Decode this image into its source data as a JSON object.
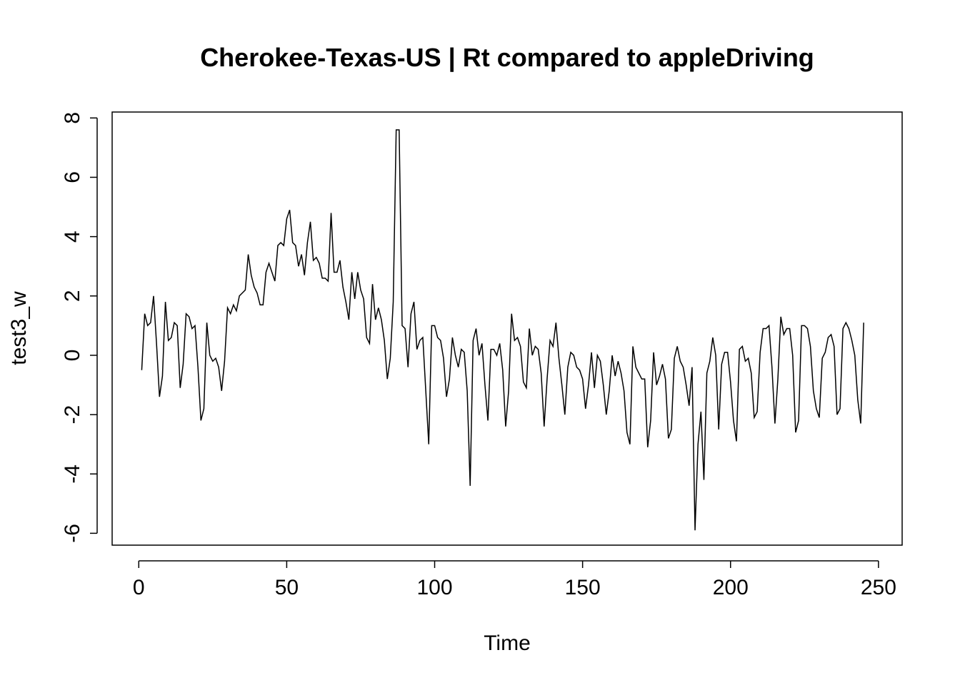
{
  "chart_data": {
    "type": "line",
    "title": "Cherokee-Texas-US | Rt compared to appleDriving",
    "xlabel": "Time",
    "ylabel": "test3_w",
    "xlim": [
      -9,
      258
    ],
    "ylim": [
      -6.4,
      8.2
    ],
    "x_ticks": [
      0,
      50,
      100,
      150,
      200,
      250
    ],
    "y_ticks": [
      -6,
      -4,
      -2,
      0,
      2,
      4,
      6,
      8
    ],
    "grid": false,
    "legend": "none",
    "series": [
      {
        "x_start": 1,
        "values": [
          -0.5,
          1.4,
          1.0,
          1.1,
          2.0,
          0.4,
          -1.4,
          -0.7,
          1.8,
          0.5,
          0.6,
          1.1,
          1.0,
          -1.1,
          -0.3,
          1.4,
          1.3,
          0.9,
          1.0,
          -0.4,
          -2.2,
          -1.8,
          1.1,
          0.0,
          -0.2,
          -0.1,
          -0.4,
          -1.2,
          -0.2,
          1.6,
          1.4,
          1.7,
          1.5,
          2.0,
          2.1,
          2.2,
          3.4,
          2.7,
          2.3,
          2.1,
          1.7,
          1.7,
          2.8,
          3.1,
          2.8,
          2.5,
          3.7,
          3.8,
          3.7,
          4.6,
          4.9,
          3.8,
          3.7,
          3.0,
          3.4,
          2.7,
          3.8,
          4.5,
          3.2,
          3.3,
          3.1,
          2.6,
          2.6,
          2.5,
          4.8,
          2.8,
          2.8,
          3.2,
          2.3,
          1.8,
          1.2,
          2.8,
          1.9,
          2.8,
          2.2,
          1.9,
          0.6,
          0.4,
          2.4,
          1.2,
          1.6,
          1.2,
          0.5,
          -0.8,
          -0.1,
          1.8,
          7.6,
          7.6,
          1.0,
          0.9,
          -0.4,
          1.4,
          1.8,
          0.2,
          0.5,
          0.6,
          -1.2,
          -3.0,
          1.0,
          1.0,
          0.6,
          0.5,
          -0.1,
          -1.4,
          -0.8,
          0.6,
          0.0,
          -0.4,
          0.2,
          0.1,
          -1.2,
          -4.4,
          0.5,
          0.9,
          0.0,
          0.4,
          -1.0,
          -2.2,
          0.2,
          0.2,
          0.0,
          0.4,
          -0.5,
          -2.4,
          -1.2,
          1.4,
          0.5,
          0.6,
          0.3,
          -0.9,
          -1.1,
          0.9,
          0.0,
          0.3,
          0.2,
          -0.6,
          -2.4,
          -0.8,
          0.5,
          0.3,
          1.1,
          -0.1,
          -1.0,
          -2.0,
          -0.4,
          0.1,
          0.0,
          -0.4,
          -0.5,
          -0.8,
          -1.8,
          -1.0,
          0.1,
          -1.1,
          0.0,
          -0.2,
          -1.0,
          -2.0,
          -1.2,
          0.0,
          -0.7,
          -0.2,
          -0.6,
          -1.2,
          -2.6,
          -3.0,
          0.3,
          -0.4,
          -0.6,
          -0.8,
          -0.8,
          -3.1,
          -2.2,
          0.1,
          -1.0,
          -0.7,
          -0.3,
          -0.8,
          -2.8,
          -2.5,
          -0.1,
          0.3,
          -0.2,
          -0.4,
          -1.0,
          -1.7,
          -0.4,
          -5.9,
          -3.0,
          -1.9,
          -4.2,
          -0.6,
          -0.2,
          0.6,
          0.0,
          -2.5,
          -0.3,
          0.1,
          0.1,
          -0.9,
          -2.2,
          -2.9,
          0.2,
          0.3,
          -0.2,
          -0.1,
          -0.6,
          -2.1,
          -1.9,
          0.1,
          0.9,
          0.9,
          1.0,
          -0.4,
          -2.3,
          -0.8,
          1.3,
          0.7,
          0.9,
          0.9,
          0.0,
          -2.6,
          -2.2,
          1.0,
          1.0,
          0.9,
          0.3,
          -1.2,
          -1.8,
          -2.1,
          -0.1,
          0.1,
          0.6,
          0.7,
          0.3,
          -2.0,
          -1.8,
          0.9,
          1.1,
          0.9,
          0.5,
          0.0,
          -1.5,
          -2.3,
          1.1
        ]
      }
    ]
  }
}
